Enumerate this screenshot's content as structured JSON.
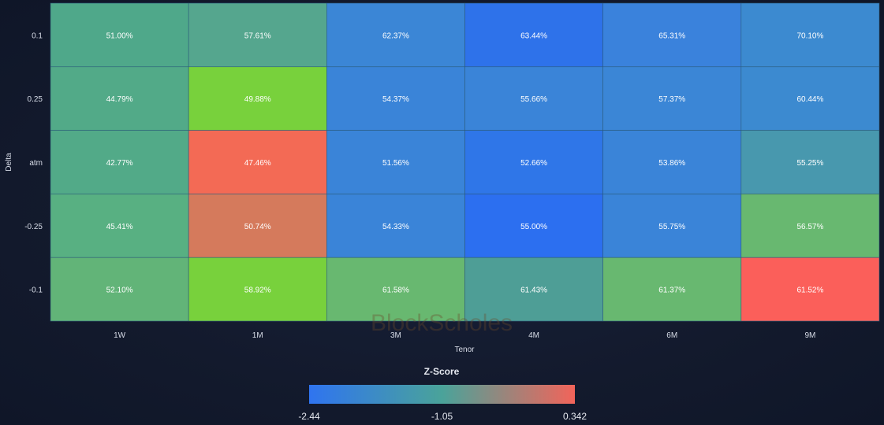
{
  "chart_data": {
    "type": "heatmap",
    "xlabel": "Tenor",
    "ylabel": "Delta",
    "x_categories": [
      "1W",
      "1M",
      "3M",
      "4M",
      "6M",
      "9M"
    ],
    "y_categories": [
      "0.1",
      "0.25",
      "atm",
      "-0.25",
      "-0.1"
    ],
    "values": [
      [
        "51.00%",
        "57.61%",
        "62.37%",
        "63.44%",
        "65.31%",
        "70.10%"
      ],
      [
        "44.79%",
        "49.88%",
        "54.37%",
        "55.66%",
        "57.37%",
        "60.44%"
      ],
      [
        "42.77%",
        "47.46%",
        "51.56%",
        "52.66%",
        "53.86%",
        "55.25%"
      ],
      [
        "45.41%",
        "50.74%",
        "54.33%",
        "55.00%",
        "55.75%",
        "56.57%"
      ],
      [
        "52.10%",
        "58.92%",
        "61.58%",
        "61.43%",
        "61.37%",
        "61.52%"
      ]
    ],
    "cell_colors": [
      [
        "#4fa88a",
        "#55a68e",
        "#3b86d6",
        "#2e72ea",
        "#3a82dc",
        "#3c8ad0"
      ],
      [
        "#52aa88",
        "#78d13c",
        "#3a84d8",
        "#3a84d8",
        "#3b86d6",
        "#3c8ad0"
      ],
      [
        "#52aa88",
        "#f36a55",
        "#3a84d8",
        "#2f76e8",
        "#3a84d8",
        "#4898ae"
      ],
      [
        "#58b082",
        "#d57a5c",
        "#3a84d8",
        "#2c6ff0",
        "#3a84d8",
        "#68b870"
      ],
      [
        "#62b478",
        "#78d13c",
        "#68b870",
        "#4e9e96",
        "#68b870",
        "#fb5f5a"
      ]
    ],
    "colorbar": {
      "title": "Z-Score",
      "tick_labels": [
        "-2.44",
        "-1.05",
        "0.342"
      ],
      "colors": [
        "#2f74f0",
        "#4aa39a",
        "#f2645a"
      ]
    },
    "watermark": "BlockScholes"
  }
}
